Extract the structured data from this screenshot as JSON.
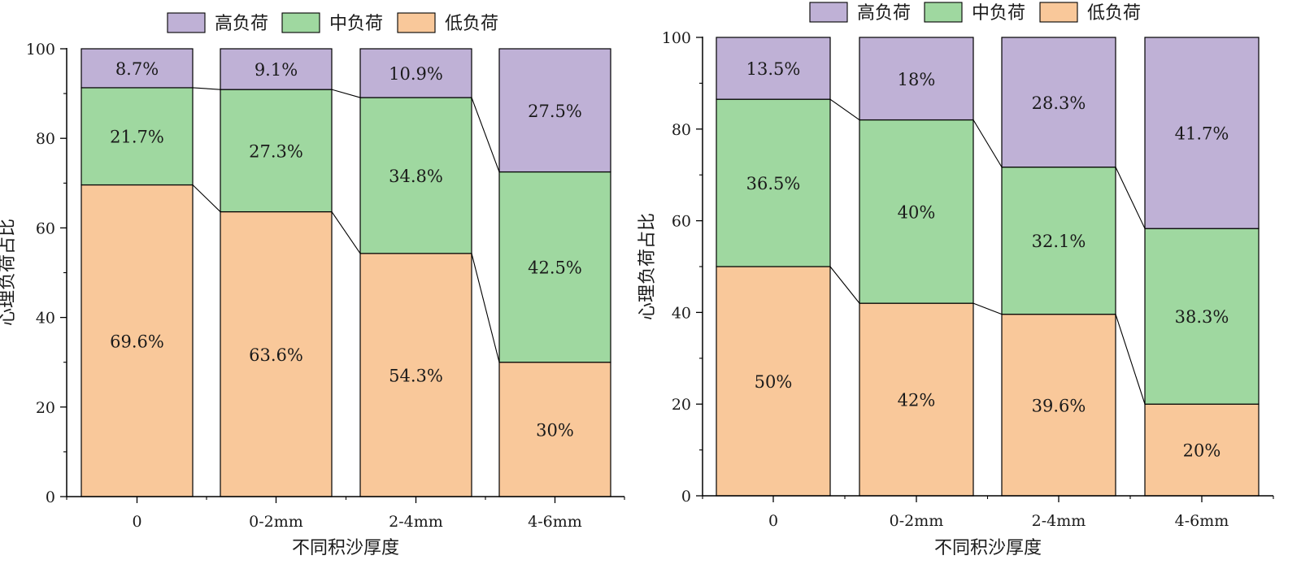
{
  "colors": {
    "high": "#bfb1d6",
    "mid": "#9fd8a0",
    "low": "#f9c89a",
    "stroke": "#000000"
  },
  "chart_data": [
    {
      "type": "bar",
      "stacked": true,
      "categories": [
        "0",
        "0-2mm",
        "2-4mm",
        "4-6mm"
      ],
      "series": [
        {
          "name": "低负荷",
          "values": [
            69.6,
            63.6,
            54.3,
            30
          ],
          "labels": [
            "69.6%",
            "63.6%",
            "54.3%",
            "30%"
          ],
          "color_key": "low"
        },
        {
          "name": "中负荷",
          "values": [
            21.7,
            27.3,
            34.8,
            42.5
          ],
          "labels": [
            "21.7%",
            "27.3%",
            "34.8%",
            "42.5%"
          ],
          "color_key": "mid"
        },
        {
          "name": "高负荷",
          "values": [
            8.7,
            9.1,
            10.9,
            27.5
          ],
          "labels": [
            "8.7%",
            "9.1%",
            "10.9%",
            "27.5%"
          ],
          "color_key": "high"
        }
      ],
      "legend_order": [
        "高负荷",
        "中负荷",
        "低负荷"
      ],
      "legend_position": "top",
      "xlabel": "不同积沙厚度",
      "ylabel": "心理负荷占比",
      "ylim": [
        0,
        100
      ],
      "yticks": [
        0,
        20,
        40,
        60,
        80,
        100
      ],
      "grid": false,
      "connector_lines": true
    },
    {
      "type": "bar",
      "stacked": true,
      "categories": [
        "0",
        "0-2mm",
        "2-4mm",
        "4-6mm"
      ],
      "series": [
        {
          "name": "低负荷",
          "values": [
            50,
            42,
            39.6,
            20
          ],
          "labels": [
            "50%",
            "42%",
            "39.6%",
            "20%"
          ],
          "color_key": "low"
        },
        {
          "name": "中负荷",
          "values": [
            36.5,
            40,
            32.1,
            38.3
          ],
          "labels": [
            "36.5%",
            "40%",
            "32.1%",
            "38.3%"
          ],
          "color_key": "mid"
        },
        {
          "name": "高负荷",
          "values": [
            13.5,
            18,
            28.3,
            41.7
          ],
          "labels": [
            "13.5%",
            "18%",
            "28.3%",
            "41.7%"
          ],
          "color_key": "high"
        }
      ],
      "legend_order": [
        "高负荷",
        "中负荷",
        "低负荷"
      ],
      "legend_position": "top",
      "xlabel": "不同积沙厚度",
      "ylabel": "心理负荷占比",
      "ylim": [
        0,
        100
      ],
      "yticks": [
        0,
        20,
        40,
        60,
        80,
        100
      ],
      "grid": false,
      "connector_lines": true
    }
  ]
}
